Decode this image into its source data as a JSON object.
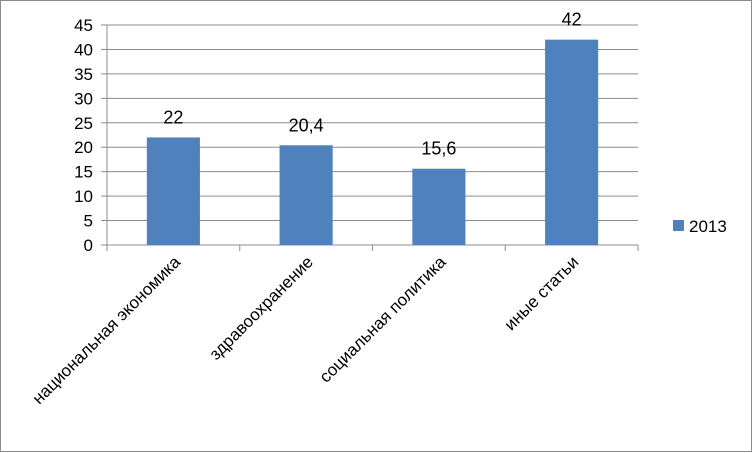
{
  "chart_data": {
    "type": "bar",
    "categories": [
      "национальная экономика",
      "здравоохранение",
      "социальная политика",
      "иные статьи"
    ],
    "series": [
      {
        "name": "2013",
        "values": [
          22,
          20.4,
          15.6,
          42
        ],
        "labels": [
          "22",
          "20,4",
          "15,6",
          "42"
        ]
      }
    ],
    "ylim": [
      0,
      45
    ],
    "yticks": [
      0,
      5,
      10,
      15,
      20,
      25,
      30,
      35,
      40,
      45
    ],
    "grid": true,
    "legend_position": "right",
    "colors": {
      "bar": "#4f81bd",
      "grid": "#8c8c8c",
      "axis": "#8c8c8c"
    }
  }
}
